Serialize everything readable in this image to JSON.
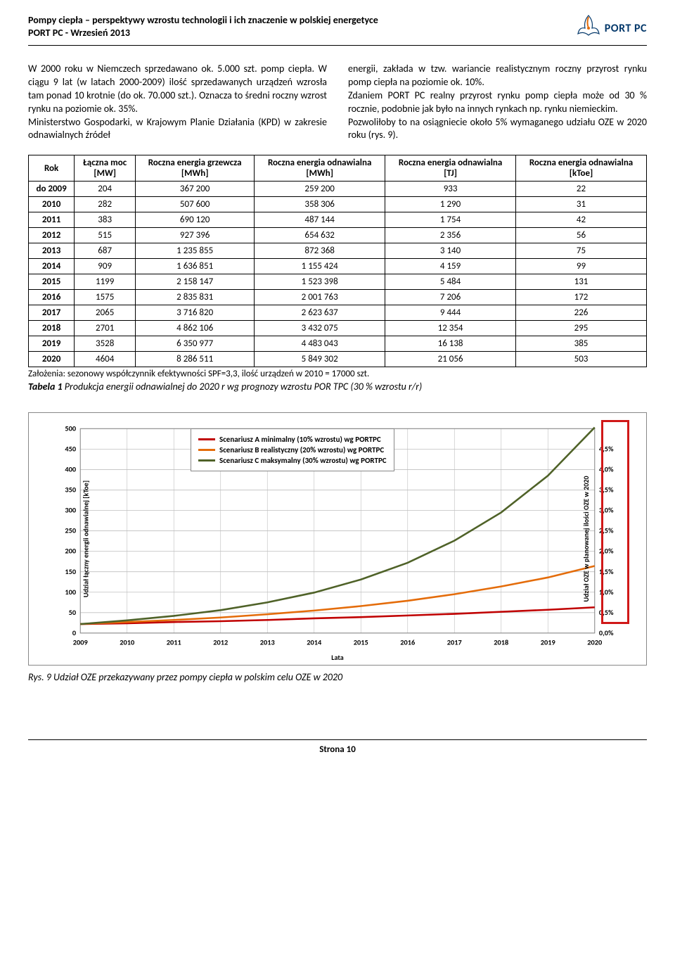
{
  "header": {
    "title_line1": "Pompy ciepła – perspektywy wzrostu technologii i ich znaczenie w polskiej energetyce",
    "title_line2": "PORT PC - Wrzesień 2013",
    "logo_text": "PORT PC"
  },
  "body": {
    "col1": "W 2000 roku w Niemczech sprzedawano ok. 5.000 szt. pomp ciepła. W ciągu 9 lat (w latach 2000-2009) ilość sprzedawanych urządzeń wzrosła tam ponad 10 krotnie (do ok. 70.000 szt.). Oznacza to średni roczny wzrost rynku na poziomie ok. 35%.\nMinisterstwo Gospodarki, w Krajowym Planie Działania (KPD) w zakresie odnawialnych źródeł",
    "col2": "energii, zakłada w tzw. wariancie realistycznym roczny przyrost rynku pomp ciepła na poziomie ok. 10%.\nZdaniem PORT PC realny przyrost rynku pomp ciepła może od 30 % rocznie, podobnie jak było na innych rynkach np. rynku niemieckim.\nPozwoliłoby to na osiągniecie około 5% wymaganego udziału OZE w 2020 roku (rys. 9)."
  },
  "table": {
    "columns": [
      "Rok",
      "Łączna moc [MW]",
      "Roczna energia grzewcza [MWh]",
      "Roczna energia odnawialna [MWh]",
      "Roczna energia odnawialna [TJ]",
      "Roczna energia odnawialna [kToe]"
    ],
    "rows": [
      [
        "do 2009",
        "204",
        "367 200",
        "259 200",
        "933",
        "22"
      ],
      [
        "2010",
        "282",
        "507 600",
        "358 306",
        "1 290",
        "31"
      ],
      [
        "2011",
        "383",
        "690 120",
        "487 144",
        "1 754",
        "42"
      ],
      [
        "2012",
        "515",
        "927 396",
        "654 632",
        "2 356",
        "56"
      ],
      [
        "2013",
        "687",
        "1 235 855",
        "872 368",
        "3 140",
        "75"
      ],
      [
        "2014",
        "909",
        "1 636 851",
        "1 155 424",
        "4 159",
        "99"
      ],
      [
        "2015",
        "1199",
        "2 158 147",
        "1 523 398",
        "5 484",
        "131"
      ],
      [
        "2016",
        "1575",
        "2 835 831",
        "2 001 763",
        "7 206",
        "172"
      ],
      [
        "2017",
        "2065",
        "3 716 820",
        "2 623 637",
        "9 444",
        "226"
      ],
      [
        "2018",
        "2701",
        "4 862 106",
        "3 432 075",
        "12 354",
        "295"
      ],
      [
        "2019",
        "3528",
        "6 350 977",
        "4 483 043",
        "16 138",
        "385"
      ],
      [
        "2020",
        "4604",
        "8 286 511",
        "5 849 302",
        "21 056",
        "503"
      ]
    ],
    "footnote": "Założenia: sezonowy  współczynnik  efektywności SPF=3,3, ilość urządzeń w 2010 = 17000 szt.",
    "caption_label": "Tabela 1",
    "caption_text": "Produkcja energii odnawialnej do 2020 r wg prognozy wzrostu POR TPC (30 % wzrostu r/r)"
  },
  "chart": {
    "type": "line",
    "x_categories": [
      "2009",
      "2010",
      "2011",
      "2012",
      "2013",
      "2014",
      "2015",
      "2016",
      "2017",
      "2018",
      "2019",
      "2020"
    ],
    "y_left": {
      "min": 0,
      "max": 500,
      "step": 50,
      "label": "Udział łączny energii odnawialnej [kToe]"
    },
    "y_right": {
      "min": 0.0,
      "max": 4.5,
      "step": 0.5,
      "labels": [
        "0,0%",
        "0,5%",
        "1,0%",
        "1,5%",
        "2,0%",
        "2,5%",
        "3,0%",
        "3,5%",
        "4,0%",
        "4,5%"
      ],
      "label": "Udział OZE w planowanej ilości OZE w 2020"
    },
    "x_label": "Lata",
    "series": [
      {
        "name": "Scenariusz A minimalny (10% wzrostu) wg PORTPC",
        "color": "#c00000",
        "values": [
          22,
          24,
          27,
          29,
          32,
          36,
          39,
          43,
          47,
          52,
          57,
          63
        ]
      },
      {
        "name": "Scenariusz B realistyczny (20% wzrostu) wg PORTPC",
        "color": "#e46c0a",
        "values": [
          22,
          27,
          32,
          38,
          46,
          55,
          66,
          79,
          95,
          114,
          136,
          164
        ]
      },
      {
        "name": "Scenariusz C maksymalny (30% wzrostu) wg PORTPC",
        "color": "#4f6228",
        "values": [
          22,
          31,
          42,
          56,
          75,
          99,
          131,
          172,
          226,
          295,
          385,
          503
        ]
      }
    ],
    "background_color": "#ffffff",
    "grid_color": "#bfbfbf",
    "line_width": 2.5,
    "legend_fontsize": 11,
    "tick_fontsize": 10,
    "highlight_color": "#d01818"
  },
  "fig_caption": "Rys. 9  Udział OZE przekazywany przez pompy ciepła w polskim celu OZE w 2020",
  "footer": "Strona 10"
}
